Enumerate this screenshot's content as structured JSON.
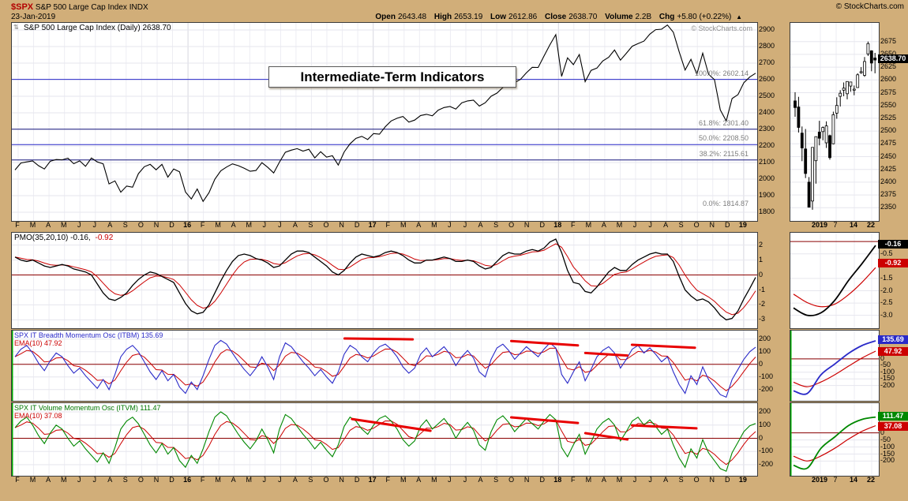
{
  "header": {
    "symbol": "$SPX",
    "name": "S&P 500 Large Cap Index",
    "exchange": "INDX",
    "date": "23-Jan-2019",
    "copyright": "© StockCharts.com",
    "quote": {
      "open_l": "Open",
      "open_v": "2643.48",
      "high_l": "High",
      "high_v": "2653.19",
      "low_l": "Low",
      "low_v": "2612.86",
      "close_l": "Close",
      "close_v": "2638.70",
      "vol_l": "Volume",
      "vol_v": "2.2B",
      "chg_l": "Chg",
      "chg_v": "+5.80 (+0.22%)",
      "arrow": "▲"
    }
  },
  "annotation_title": "Intermediate-Term Indicators",
  "chart_data": {
    "type": "line",
    "x_axis": {
      "month_labels": [
        "F",
        "M",
        "A",
        "M",
        "J",
        "J",
        "A",
        "S",
        "O",
        "N",
        "D",
        "16",
        "F",
        "M",
        "A",
        "M",
        "J",
        "J",
        "A",
        "S",
        "O",
        "N",
        "D",
        "17",
        "F",
        "M",
        "A",
        "M",
        "J",
        "J",
        "A",
        "S",
        "O",
        "N",
        "D",
        "18",
        "F",
        "M",
        "A",
        "M",
        "J",
        "J",
        "A",
        "S",
        "O",
        "N",
        "D",
        "19"
      ]
    },
    "panels": {
      "price": {
        "type": "line",
        "title": "S&P 500 Large Cap Index (Daily) 2638.70",
        "watermark": "© StockCharts.com",
        "ylim": [
          1800,
          2900
        ],
        "yticks": [
          2900,
          2800,
          2700,
          2600,
          2500,
          2400,
          2300,
          2200,
          2100,
          2000,
          1900,
          1800
        ],
        "fib_levels": [
          {
            "label": "100.0%: 2602.14",
            "value": 2602.14,
            "line_color": "#2a2ac8"
          },
          {
            "label": "61.8%: 2301.40",
            "value": 2301.4,
            "line_color": "#15157d"
          },
          {
            "label": "50.0%: 2208.50",
            "value": 2208.5,
            "line_color": "#2a2ac8"
          },
          {
            "label": "38.2%: 2115.61",
            "value": 2115.61,
            "line_color": "#15157d"
          },
          {
            "label": "0.0%: 1814.87",
            "value": 1814.87,
            "line_color": ""
          }
        ],
        "values": [
          2055,
          2097,
          2104,
          2110,
          2081,
          2061,
          2108,
          2118,
          2116,
          2126,
          2093,
          2110,
          2077,
          2127,
          2104,
          2092,
          1971,
          1989,
          1921,
          1958,
          1951,
          2033,
          2075,
          2089,
          2056,
          2089,
          2012,
          2061,
          2044,
          1922,
          1880,
          1940,
          1865,
          1918,
          1999,
          2050,
          2073,
          2092,
          2081,
          2065,
          2047,
          2052,
          2099,
          2071,
          2037,
          2103,
          2162,
          2175,
          2184,
          2169,
          2180,
          2128,
          2165,
          2133,
          2141,
          2085,
          2164,
          2213,
          2246,
          2258,
          2239,
          2275,
          2271,
          2316,
          2351,
          2367,
          2378,
          2344,
          2356,
          2384,
          2391,
          2382,
          2416,
          2432,
          2438,
          2423,
          2460,
          2472,
          2476,
          2441,
          2461,
          2500,
          2519,
          2553,
          2581,
          2582,
          2602,
          2642,
          2675,
          2674,
          2743,
          2810,
          2872,
          2620,
          2732,
          2691,
          2752,
          2588,
          2656,
          2670,
          2713,
          2735,
          2779,
          2718,
          2759,
          2802,
          2818,
          2833,
          2875,
          2902,
          2905,
          2930,
          2886,
          2768,
          2658,
          2723,
          2633,
          2760,
          2633,
          2600,
          2417,
          2351,
          2486,
          2510,
          2582,
          2616,
          2639
        ]
      },
      "pmo": {
        "type": "line",
        "header_main": "PMO(35,20,10) -0.16,",
        "header_signal": "-0.92",
        "ylim": [
          -3.4,
          2.4
        ],
        "yticks": [
          2,
          1,
          0,
          -1,
          -2,
          -3
        ],
        "values": [
          1.2,
          1.0,
          0.9,
          1.0,
          0.8,
          0.6,
          0.5,
          0.6,
          0.7,
          0.6,
          0.4,
          0.3,
          0.2,
          0.0,
          -0.6,
          -1.2,
          -1.6,
          -1.7,
          -1.5,
          -1.2,
          -0.7,
          -0.3,
          0.0,
          0.2,
          0.1,
          -0.1,
          -0.3,
          -0.5,
          -1.2,
          -1.9,
          -2.4,
          -2.6,
          -2.5,
          -2.0,
          -1.2,
          -0.4,
          0.3,
          0.9,
          1.3,
          1.4,
          1.3,
          1.1,
          1.0,
          0.8,
          0.5,
          0.6,
          1.0,
          1.4,
          1.6,
          1.6,
          1.5,
          1.2,
          0.9,
          0.6,
          0.2,
          0.0,
          0.3,
          0.8,
          1.2,
          1.4,
          1.3,
          1.2,
          1.3,
          1.5,
          1.6,
          1.5,
          1.3,
          1.0,
          0.8,
          0.8,
          1.0,
          1.0,
          1.1,
          1.2,
          1.1,
          0.9,
          0.9,
          1.0,
          0.9,
          0.6,
          0.4,
          0.5,
          0.9,
          1.3,
          1.5,
          1.4,
          1.4,
          1.6,
          1.7,
          1.6,
          1.8,
          2.2,
          2.4,
          1.5,
          0.3,
          -0.5,
          -0.6,
          -1.1,
          -1.2,
          -0.8,
          -0.3,
          0.2,
          0.5,
          0.3,
          0.3,
          0.7,
          1.0,
          1.2,
          1.4,
          1.5,
          1.4,
          1.4,
          0.9,
          -0.1,
          -1.0,
          -1.4,
          -1.7,
          -1.6,
          -1.8,
          -2.2,
          -2.7,
          -3.0,
          -2.9,
          -2.4,
          -1.6,
          -0.9,
          -0.16
        ]
      },
      "itbm": {
        "type": "line",
        "header_main": "SPX IT Breadth Momentum Osc (ITBM) 135.69",
        "header_ema": "EMA(10) 47.92",
        "ylim": [
          -270,
          230
        ],
        "yticks": [
          200,
          100,
          0,
          -100,
          -200
        ],
        "values": [
          60,
          120,
          150,
          90,
          10,
          -50,
          30,
          90,
          60,
          -10,
          -70,
          -30,
          -90,
          -140,
          -190,
          -120,
          -200,
          -80,
          60,
          120,
          150,
          100,
          20,
          -60,
          -120,
          -50,
          -130,
          -80,
          -180,
          -230,
          -140,
          -200,
          -90,
          40,
          150,
          190,
          160,
          90,
          20,
          -40,
          -90,
          -30,
          60,
          -20,
          -120,
          60,
          170,
          140,
          80,
          20,
          -30,
          -90,
          -40,
          -100,
          -150,
          -60,
          80,
          150,
          120,
          60,
          20,
          90,
          140,
          160,
          120,
          60,
          -20,
          -70,
          -30,
          80,
          130,
          60,
          100,
          140,
          80,
          -10,
          60,
          110,
          50,
          -60,
          -100,
          40,
          130,
          160,
          110,
          40,
          90,
          140,
          100,
          60,
          120,
          170,
          130,
          -80,
          -150,
          -60,
          20,
          -130,
          -40,
          60,
          110,
          140,
          90,
          -30,
          40,
          120,
          150,
          90,
          130,
          80,
          20,
          60,
          -60,
          -160,
          -230,
          -90,
          -160,
          -20,
          -120,
          -180,
          -240,
          -260,
          -120,
          -40,
          40,
          100,
          135.69
        ],
        "trendlines": [
          {
            "x1": 0.445,
            "v1": 205,
            "x2": 0.537,
            "v2": 198
          },
          {
            "x1": 0.67,
            "v1": 185,
            "x2": 0.76,
            "v2": 150
          },
          {
            "x1": 0.77,
            "v1": 90,
            "x2": 0.827,
            "v2": 70
          },
          {
            "x1": 0.833,
            "v1": 155,
            "x2": 0.918,
            "v2": 132
          }
        ]
      },
      "itvm": {
        "type": "line",
        "header_main": "SPX IT Volume Momentum Osc (ITVM) 111.47",
        "header_ema": "EMA(10) 37.08",
        "ylim": [
          -260,
          230
        ],
        "yticks": [
          200,
          100,
          0,
          -100,
          -200
        ],
        "values": [
          80,
          130,
          160,
          100,
          20,
          -40,
          40,
          100,
          70,
          0,
          -60,
          -20,
          -80,
          -130,
          -180,
          -110,
          -190,
          -70,
          70,
          130,
          160,
          110,
          30,
          -50,
          -110,
          -40,
          -120,
          -70,
          -170,
          -220,
          -130,
          -190,
          -80,
          50,
          160,
          200,
          170,
          100,
          30,
          -30,
          -80,
          -20,
          70,
          -10,
          -110,
          70,
          180,
          150,
          90,
          30,
          -20,
          -80,
          -30,
          -90,
          -140,
          -50,
          90,
          160,
          130,
          70,
          30,
          100,
          150,
          170,
          130,
          70,
          -10,
          -60,
          -20,
          90,
          140,
          70,
          110,
          150,
          90,
          0,
          70,
          120,
          60,
          -50,
          -90,
          50,
          140,
          170,
          120,
          50,
          100,
          150,
          110,
          70,
          130,
          180,
          140,
          -70,
          -140,
          -50,
          30,
          -120,
          -30,
          70,
          120,
          150,
          100,
          -20,
          50,
          130,
          160,
          100,
          140,
          90,
          30,
          70,
          -50,
          -150,
          -220,
          -80,
          -150,
          -10,
          -110,
          -170,
          -230,
          -250,
          -110,
          -30,
          50,
          95,
          111.47
        ],
        "trendlines": [
          {
            "x1": 0.455,
            "v1": 146,
            "x2": 0.561,
            "v2": 57
          },
          {
            "x1": 0.67,
            "v1": 158,
            "x2": 0.76,
            "v2": 116
          },
          {
            "x1": 0.77,
            "v1": 39,
            "x2": 0.827,
            "v2": -9
          },
          {
            "x1": 0.833,
            "v1": 98,
            "x2": 0.92,
            "v2": 75
          }
        ]
      }
    },
    "mini": {
      "x_labels": [
        "2019",
        "7",
        "14",
        "22"
      ],
      "price": {
        "type": "candlestick",
        "yticks": [
          2675,
          2650,
          2625,
          2600,
          2575,
          2550,
          2525,
          2500,
          2475,
          2450,
          2425,
          2400,
          2375,
          2350
        ],
        "last": "2638.70",
        "ohlc": [
          [
            2559,
            2576,
            2528,
            2546
          ],
          [
            2547,
            2567,
            2497,
            2507
          ],
          [
            2496,
            2509,
            2441,
            2467
          ],
          [
            2465,
            2504,
            2408,
            2417
          ],
          [
            2400,
            2410,
            2351,
            2351
          ],
          [
            2363,
            2468,
            2346,
            2468
          ],
          [
            2442,
            2489,
            2397,
            2489
          ],
          [
            2498,
            2520,
            2472,
            2486
          ],
          [
            2499,
            2509,
            2482,
            2507
          ],
          [
            2477,
            2519,
            2467,
            2510
          ],
          [
            2491,
            2493,
            2444,
            2448
          ],
          [
            2475,
            2538,
            2474,
            2532
          ],
          [
            2535,
            2566,
            2524,
            2550
          ],
          [
            2568,
            2580,
            2548,
            2574
          ],
          [
            2580,
            2595,
            2568,
            2584
          ],
          [
            2573,
            2597,
            2562,
            2597
          ],
          [
            2588,
            2596,
            2577,
            2596
          ],
          [
            2580,
            2589,
            2570,
            2582
          ],
          [
            2585,
            2613,
            2585,
            2610
          ],
          [
            2614,
            2625,
            2612,
            2616
          ],
          [
            2609,
            2645,
            2606,
            2636
          ],
          [
            2651,
            2675,
            2647,
            2671
          ],
          [
            2657,
            2658,
            2617,
            2633
          ],
          [
            2643,
            2653,
            2613,
            2639
          ]
        ]
      },
      "pmo": {
        "yticks": [
          "-0.5",
          "-1.5",
          "-2.0",
          "-2.5",
          "-3.0"
        ],
        "last": "-0.16",
        "signal_last": "-0.92"
      },
      "itbm": {
        "yticks": [
          "0",
          "-50",
          "-100",
          "-150",
          "-200"
        ],
        "last": "135.69",
        "ema_last": "47.92"
      },
      "itvm": {
        "yticks": [
          "0",
          "-50",
          "-100",
          "-150",
          "-200"
        ],
        "last": "111.47",
        "ema_last": "37.08"
      }
    },
    "colors": {
      "price": "#000000",
      "pmo": "#000000",
      "signal": "#cc0000",
      "itbm": "#2a2ac8",
      "itvm": "#008800",
      "ema": "#cc0000",
      "zero": "#8b0000",
      "trendline": "#e80000",
      "fib_blue": "#2a2ac8",
      "fib_navy": "#15157d",
      "background": "#d1ae79",
      "green_edge": "#00a800"
    }
  }
}
